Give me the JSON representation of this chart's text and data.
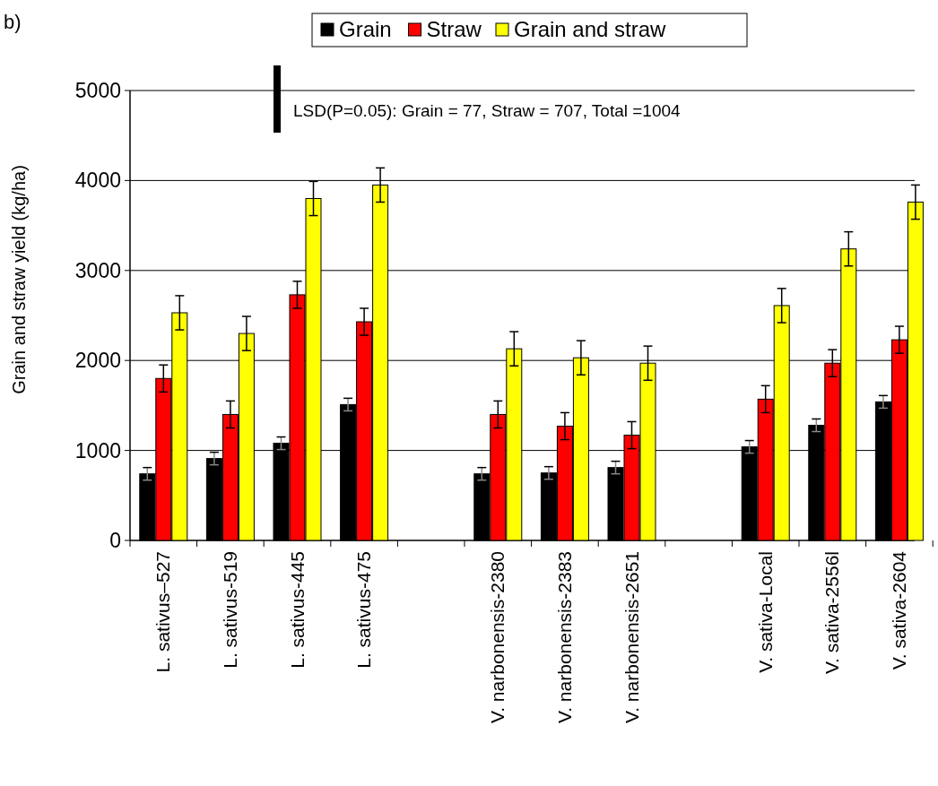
{
  "chart_data": {
    "type": "bar",
    "title": "b)",
    "ylabel": "Grain and straw yield (kg/ha)",
    "categories": [
      "L. sativus–527",
      "L. sativus-519",
      "L. sativus-445",
      "L. sativus-475",
      null,
      "V. narbonensis-2380",
      "V. narbonensis-2383",
      "V. narbonensis-2651",
      null,
      "V. sativa-Local",
      "V. sativa-2556l",
      "V. sativa-2604"
    ],
    "series": [
      {
        "name": "Grain",
        "color": "#000000",
        "values": [
          740,
          910,
          1080,
          1510,
          null,
          740,
          750,
          810,
          null,
          1040,
          1280,
          1540
        ],
        "errors": [
          70,
          70,
          70,
          70,
          null,
          70,
          70,
          70,
          null,
          70,
          70,
          70
        ]
      },
      {
        "name": "Straw",
        "color": "#ff0000",
        "values": [
          1800,
          1400,
          2730,
          2430,
          null,
          1400,
          1270,
          1170,
          null,
          1570,
          1970,
          2230
        ],
        "errors": [
          150,
          150,
          150,
          150,
          null,
          150,
          150,
          150,
          null,
          150,
          150,
          150
        ]
      },
      {
        "name": "Grain and straw",
        "color": "#ffff00",
        "values": [
          2530,
          2300,
          3800,
          3950,
          null,
          2130,
          2030,
          1970,
          null,
          2610,
          3240,
          3760
        ],
        "errors": [
          190,
          190,
          190,
          190,
          null,
          190,
          190,
          190,
          null,
          190,
          190,
          190
        ]
      }
    ],
    "ylim": [
      0,
      5000
    ],
    "yticks": [
      0,
      1000,
      2000,
      3000,
      4000,
      5000
    ],
    "grid": "y",
    "legend": "top",
    "annotations": [
      "LSD(P=0.05): Grain = 77, Straw = 707, Total =1004"
    ]
  }
}
